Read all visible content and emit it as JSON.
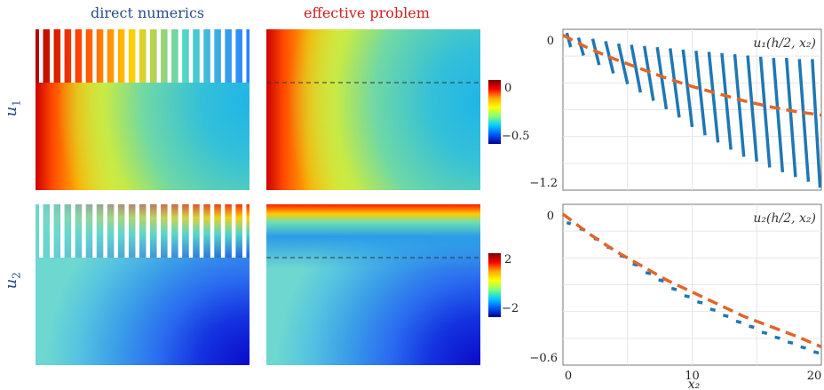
{
  "columns": {
    "direct": {
      "label": "direct numerics",
      "color": "#2b4c8c"
    },
    "effective": {
      "label": "effective problem",
      "color": "#cc2222"
    }
  },
  "rows": [
    {
      "var": "u",
      "sub": "1"
    },
    {
      "var": "u",
      "sub": "2"
    }
  ],
  "colorbars": [
    {
      "ticks": [
        "0",
        "−0.5"
      ]
    },
    {
      "ticks": [
        "2",
        "−2"
      ]
    }
  ],
  "chart_data": [
    {
      "type": "line",
      "legend_text": "u₁(h/2, x₂)",
      "y_ticks": [
        "0",
        "−1.2"
      ],
      "ylim": [
        -1.3,
        0.05
      ],
      "xlim": [
        0,
        20
      ],
      "grid": true,
      "series": [
        {
          "style": "solid-segments",
          "color": "#1f77b4",
          "segments": [
            [
              0.3,
              0.02,
              0.6,
              -0.1
            ],
            [
              1.2,
              -0.02,
              1.6,
              -0.17
            ],
            [
              2.3,
              -0.03,
              2.8,
              -0.25
            ],
            [
              3.3,
              -0.05,
              3.9,
              -0.32
            ],
            [
              4.3,
              -0.07,
              5.0,
              -0.41
            ],
            [
              5.3,
              -0.08,
              6.0,
              -0.48
            ],
            [
              6.3,
              -0.09,
              7.0,
              -0.55
            ],
            [
              7.3,
              -0.1,
              8.0,
              -0.62
            ],
            [
              8.3,
              -0.11,
              9.0,
              -0.69
            ],
            [
              9.3,
              -0.12,
              10.0,
              -0.77
            ],
            [
              10.3,
              -0.13,
              11.0,
              -0.84
            ],
            [
              11.3,
              -0.14,
              12.0,
              -0.9
            ],
            [
              12.3,
              -0.15,
              13.0,
              -0.96
            ],
            [
              13.3,
              -0.16,
              14.0,
              -1.02
            ],
            [
              14.3,
              -0.17,
              15.0,
              -1.06
            ],
            [
              15.3,
              -0.18,
              16.0,
              -1.11
            ],
            [
              16.3,
              -0.19,
              17.0,
              -1.15
            ],
            [
              17.3,
              -0.19,
              18.0,
              -1.19
            ],
            [
              18.3,
              -0.2,
              19.0,
              -1.23
            ],
            [
              19.3,
              -0.2,
              19.9,
              -1.28
            ]
          ]
        },
        {
          "style": "dashed",
          "color": "#e0662a",
          "x": [
            0,
            2,
            4,
            6,
            8,
            10,
            12,
            14,
            16,
            18,
            20
          ],
          "y": [
            0,
            -0.11,
            -0.2,
            -0.28,
            -0.36,
            -0.43,
            -0.49,
            -0.55,
            -0.6,
            -0.64,
            -0.67
          ]
        }
      ]
    },
    {
      "type": "line",
      "legend_text": "u₂(h/2, x₂)",
      "y_ticks": [
        "0",
        "−0.6"
      ],
      "x_ticks": [
        "0",
        "10",
        "20"
      ],
      "xlabel": "x₂",
      "ylim": [
        -0.62,
        0.04
      ],
      "xlim": [
        0,
        20
      ],
      "grid": true,
      "series": [
        {
          "style": "solid-segments",
          "color": "#1f77b4",
          "segments": [
            [
              0.3,
              -0.035,
              0.6,
              -0.04
            ],
            [
              1.3,
              -0.06,
              1.7,
              -0.065
            ],
            [
              2.4,
              -0.1,
              2.8,
              -0.105
            ],
            [
              3.4,
              -0.135,
              3.8,
              -0.14
            ],
            [
              4.4,
              -0.17,
              4.8,
              -0.175
            ],
            [
              5.4,
              -0.205,
              5.8,
              -0.21
            ],
            [
              6.4,
              -0.24,
              6.8,
              -0.245
            ],
            [
              7.4,
              -0.27,
              7.8,
              -0.275
            ],
            [
              8.4,
              -0.305,
              8.8,
              -0.31
            ],
            [
              9.4,
              -0.335,
              9.8,
              -0.34
            ],
            [
              10.4,
              -0.36,
              10.8,
              -0.365
            ],
            [
              11.4,
              -0.39,
              11.8,
              -0.395
            ],
            [
              12.4,
              -0.415,
              12.8,
              -0.42
            ],
            [
              13.4,
              -0.44,
              13.8,
              -0.445
            ],
            [
              14.4,
              -0.46,
              14.8,
              -0.465
            ],
            [
              15.4,
              -0.485,
              15.8,
              -0.49
            ],
            [
              16.4,
              -0.505,
              16.8,
              -0.51
            ],
            [
              17.4,
              -0.525,
              17.8,
              -0.53
            ],
            [
              18.4,
              -0.545,
              18.8,
              -0.55
            ],
            [
              19.4,
              -0.565,
              19.8,
              -0.57
            ]
          ]
        },
        {
          "style": "dashed",
          "color": "#e0662a",
          "x": [
            0,
            2,
            4,
            6,
            8,
            10,
            12,
            14,
            16,
            18,
            20
          ],
          "y": [
            0,
            -0.08,
            -0.15,
            -0.21,
            -0.27,
            -0.32,
            -0.37,
            -0.42,
            -0.46,
            -0.5,
            -0.545
          ]
        }
      ]
    }
  ]
}
